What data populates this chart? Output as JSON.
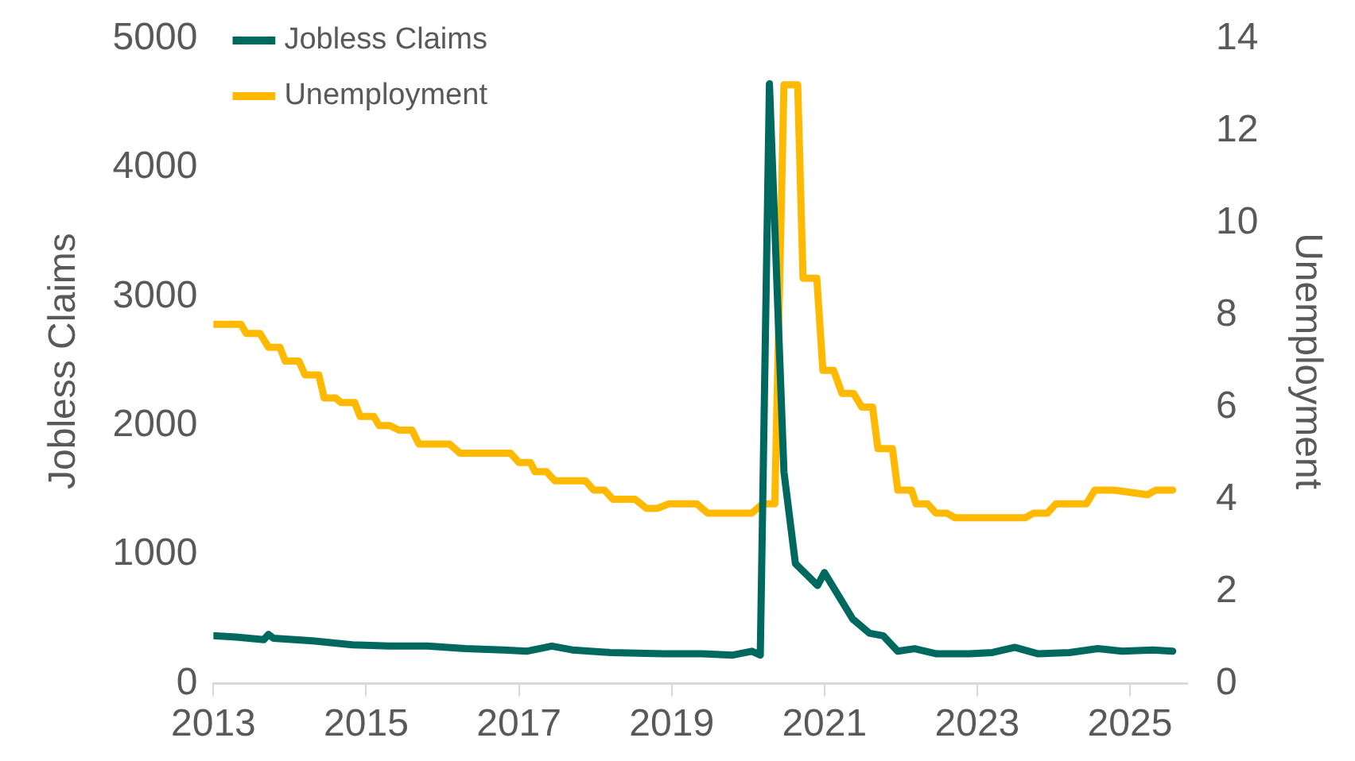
{
  "chart_data": {
    "type": "line",
    "ylabel": "Jobless Claims",
    "y2label": "Unemployment",
    "legend": "top left",
    "xlim": [
      2013,
      2025.75
    ],
    "xticks": [
      2013,
      2015,
      2017,
      2019,
      2021,
      2023,
      2025
    ],
    "ylim": [
      0,
      5000
    ],
    "yticks": [
      0,
      1000,
      2000,
      3000,
      4000,
      5000
    ],
    "y2lim": [
      0,
      14
    ],
    "y2ticks": [
      0,
      2,
      4,
      6,
      8,
      10,
      12,
      14
    ],
    "series": [
      {
        "name": "Jobless Claims",
        "color": "#00695f",
        "x": [
          2013.0,
          2013.3,
          2013.66,
          2013.72,
          2013.79,
          2014.3,
          2014.82,
          2015.3,
          2015.8,
          2016.3,
          2016.8,
          2017.1,
          2017.43,
          2017.7,
          2018.2,
          2018.9,
          2019.4,
          2019.8,
          2020.05,
          2020.16,
          2020.28,
          2020.47,
          2020.62,
          2020.91,
          2021.0,
          2021.37,
          2021.59,
          2021.77,
          2021.96,
          2022.18,
          2022.47,
          2022.9,
          2023.2,
          2023.49,
          2023.8,
          2024.21,
          2024.58,
          2024.9,
          2025.3,
          2025.56
        ],
        "values": [
          370,
          360,
          340,
          380,
          350,
          330,
          300,
          290,
          290,
          270,
          260,
          250,
          290,
          260,
          240,
          230,
          230,
          220,
          250,
          220,
          4650,
          1640,
          930,
          760,
          860,
          500,
          390,
          370,
          250,
          270,
          230,
          230,
          240,
          280,
          230,
          240,
          270,
          250,
          260,
          250
        ]
      },
      {
        "name": "Unemployment",
        "color": "#ffb900",
        "axis": "y2",
        "x": [
          2013.0,
          2013.36,
          2013.43,
          2013.61,
          2013.72,
          2013.87,
          2013.94,
          2014.12,
          2014.2,
          2014.38,
          2014.45,
          2014.6,
          2014.67,
          2014.85,
          2014.92,
          2015.1,
          2015.17,
          2015.31,
          2015.43,
          2015.6,
          2015.69,
          2016.09,
          2016.23,
          2016.89,
          2017.0,
          2017.15,
          2017.21,
          2017.36,
          2017.47,
          2017.87,
          2017.98,
          2018.12,
          2018.23,
          2018.52,
          2018.67,
          2018.81,
          2018.96,
          2019.33,
          2019.47,
          2020.05,
          2020.19,
          2020.35,
          2020.47,
          2020.65,
          2020.72,
          2020.9,
          2020.98,
          2021.12,
          2021.23,
          2021.38,
          2021.49,
          2021.63,
          2021.7,
          2021.89,
          2021.96,
          2022.14,
          2022.2,
          2022.35,
          2022.46,
          2022.6,
          2022.71,
          2023.63,
          2023.74,
          2023.92,
          2024.03,
          2024.43,
          2024.54,
          2024.69,
          2024.79,
          2025.23,
          2025.34,
          2025.56
        ],
        "values": [
          7.8,
          7.8,
          7.6,
          7.6,
          7.3,
          7.3,
          7.0,
          7.0,
          6.7,
          6.7,
          6.2,
          6.2,
          6.1,
          6.1,
          5.8,
          5.8,
          5.6,
          5.6,
          5.5,
          5.5,
          5.2,
          5.2,
          5.0,
          5.0,
          4.8,
          4.8,
          4.6,
          4.6,
          4.4,
          4.4,
          4.2,
          4.2,
          4.0,
          4.0,
          3.8,
          3.8,
          3.9,
          3.9,
          3.7,
          3.7,
          3.9,
          3.9,
          13.0,
          13.0,
          8.8,
          8.8,
          6.8,
          6.8,
          6.3,
          6.3,
          6.0,
          6.0,
          5.1,
          5.1,
          4.2,
          4.2,
          3.9,
          3.9,
          3.7,
          3.7,
          3.6,
          3.6,
          3.7,
          3.7,
          3.9,
          3.9,
          4.2,
          4.2,
          4.2,
          4.1,
          4.2,
          4.2
        ]
      }
    ]
  }
}
